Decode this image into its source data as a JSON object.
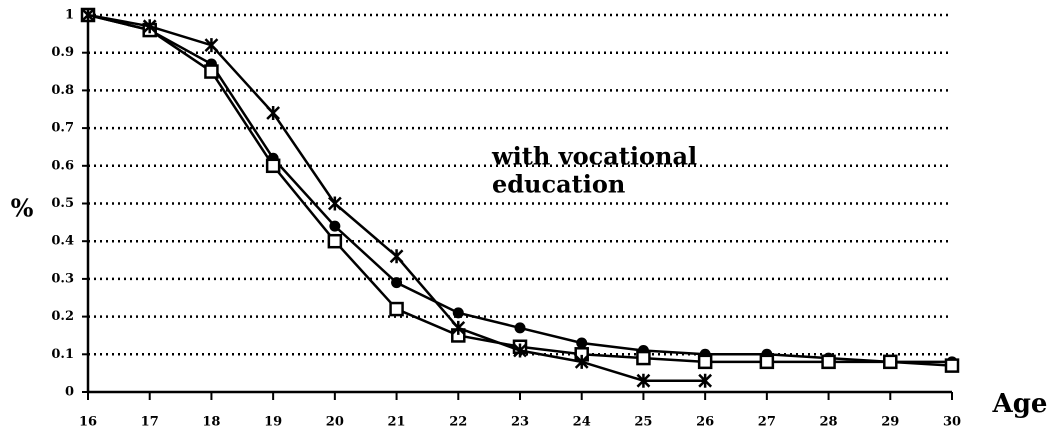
{
  "chart_data": {
    "type": "line",
    "xlabel": "Age",
    "ylabel": "%",
    "annotation": [
      "with vocational",
      "education"
    ],
    "x": [
      16,
      17,
      18,
      19,
      20,
      21,
      22,
      23,
      24,
      25,
      26,
      27,
      28,
      29,
      30
    ],
    "series": [
      {
        "color": "#000000",
        "marker": "circle",
        "values": [
          1,
          0.96,
          0.87,
          0.62,
          0.44,
          0.29,
          0.21,
          0.17,
          0.13,
          0.11,
          0.1,
          0.1,
          0.09,
          0.08,
          0.08
        ]
      },
      {
        "color": "#000000",
        "marker": "square",
        "values": [
          1,
          0.96,
          0.85,
          0.6,
          0.4,
          0.22,
          0.15,
          0.12,
          0.1,
          0.09,
          0.08,
          0.08,
          0.08,
          0.08,
          0.07
        ]
      },
      {
        "color": "#000000",
        "marker": "x",
        "values": [
          1,
          0.97,
          0.92,
          0.74,
          0.5,
          0.36,
          0.17,
          0.11,
          0.08,
          0.03,
          0.03,
          null,
          null,
          null,
          null
        ]
      }
    ],
    "xlim": [
      16,
      30
    ],
    "xticks": [
      16,
      17,
      18,
      19,
      20,
      21,
      22,
      23,
      24,
      25,
      26,
      27,
      28,
      29,
      30
    ],
    "ylim": [
      0,
      1
    ],
    "yticks": [
      0,
      0.1,
      0.2,
      0.3,
      0.4,
      0.5,
      0.6,
      0.7,
      0.8,
      0.9,
      1
    ],
    "grid": true
  }
}
